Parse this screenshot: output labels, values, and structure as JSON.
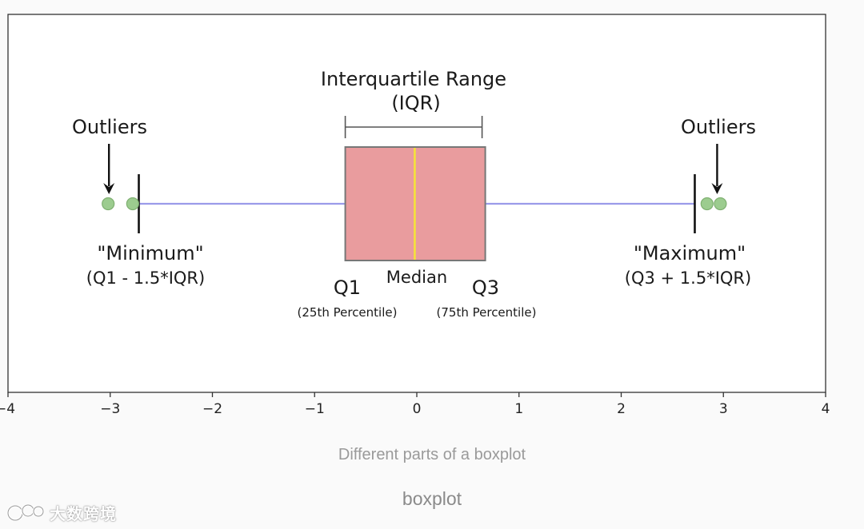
{
  "chart_data": {
    "type": "box",
    "orientation": "horizontal",
    "xlim": [
      -4,
      4
    ],
    "xticks": [
      -4,
      -3,
      -2,
      -1,
      0,
      1,
      2,
      3,
      4
    ],
    "xtick_labels": [
      "−4",
      "−3",
      "−2",
      "−1",
      "0",
      "1",
      "2",
      "3",
      "4"
    ],
    "box": {
      "q1": -0.7,
      "median": -0.02,
      "q3": 0.67,
      "whisker_low": -2.72,
      "whisker_high": 2.72
    },
    "outliers": [
      -3.02,
      -2.78,
      2.84,
      2.97
    ],
    "annotations": {
      "iqr_title": "Interquartile Range",
      "iqr_abbr": "(IQR)",
      "outliers_left": "Outliers",
      "outliers_right": "Outliers",
      "minimum_label": "\"Minimum\"",
      "minimum_formula": "(Q1 - 1.5*IQR)",
      "maximum_label": "\"Maximum\"",
      "maximum_formula": "(Q3 + 1.5*IQR)",
      "q1_label": "Q1",
      "q1_sub": "(25th Percentile)",
      "median_label": "Median",
      "q3_label": "Q3",
      "q3_sub": "(75th Percentile)"
    },
    "colors": {
      "box_fill": "#e99c9e",
      "box_edge": "#777777",
      "median": "#f5e33a",
      "whisker": "#9b9bea",
      "cap": "#111111",
      "outlier_fill": "#9ccc8f",
      "outlier_edge": "#7fb071",
      "axis": "#333333",
      "text": "#1a1a1a"
    }
  },
  "captions": {
    "main": "Different parts of a boxplot",
    "sub": "boxplot"
  },
  "watermark": {
    "text": "大数跨境",
    "icon": "chat-bubbles-logo-icon"
  }
}
